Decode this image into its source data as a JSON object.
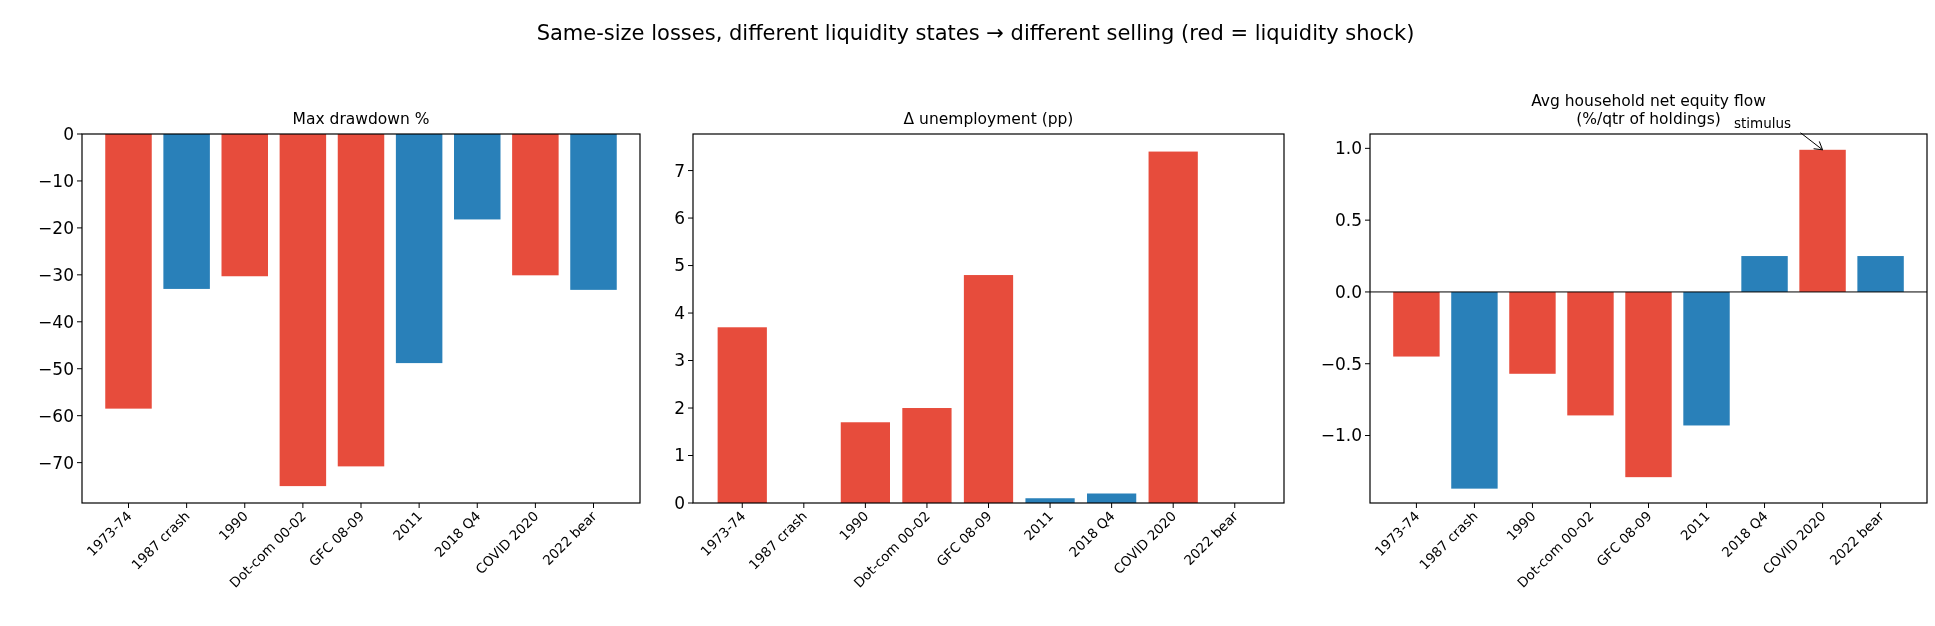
{
  "chart_data": [
    {
      "type": "bar",
      "title": "Max drawdown %",
      "annotations": [
        "Same-size losses, different liquidity states → different selling (red = liquidity shock)"
      ],
      "categories": [
        "1973-74",
        "1987 crash",
        "1990",
        "Dot-com 00-02",
        "GFC 08-09",
        "2011",
        "2018 Q4",
        "COVID 2020",
        "2022 bear"
      ],
      "values": [
        -58.5,
        -33,
        -30.3,
        -75,
        -70.8,
        -48.8,
        -18.2,
        -30.1,
        -33.2
      ],
      "colors": [
        "#e74c3c",
        "#2980b9",
        "#e74c3c",
        "#e74c3c",
        "#e74c3c",
        "#2980b9",
        "#2980b9",
        "#e74c3c",
        "#2980b9"
      ],
      "ylim": [
        -78.6,
        0
      ],
      "yticks": [
        {
          "value": -70,
          "label": "−70"
        },
        {
          "value": -60,
          "label": "−60"
        },
        {
          "value": -50,
          "label": "−50"
        },
        {
          "value": -40,
          "label": "−40"
        },
        {
          "value": -30,
          "label": "−30"
        },
        {
          "value": -20,
          "label": "−20"
        },
        {
          "value": -10,
          "label": "−10"
        },
        0
      ]
    },
    {
      "type": "bar",
      "title": "Δ unemployment (pp)",
      "categories": [
        "1973-74",
        "1987 crash",
        "1990",
        "Dot-com 00-02",
        "GFC 08-09",
        "2011",
        "2018 Q4",
        "COVID 2020",
        "2022 bear"
      ],
      "values": [
        3.7,
        0,
        1.7,
        2.0,
        4.8,
        0.1,
        0.2,
        7.4,
        0
      ],
      "colors": [
        "#e74c3c",
        "#2980b9",
        "#e74c3c",
        "#e74c3c",
        "#e74c3c",
        "#2980b9",
        "#2980b9",
        "#e74c3c",
        "#2980b9"
      ],
      "ylim": [
        0,
        7.77
      ],
      "yticks": [
        0,
        1,
        2,
        3,
        4,
        5,
        6,
        7
      ]
    },
    {
      "type": "bar",
      "title": "Avg household net equity flow\n(%/qtr of holdings)",
      "categories": [
        "1973-74",
        "1987 crash",
        "1990",
        "Dot-com 00-02",
        "GFC 08-09",
        "2011",
        "2018 Q4",
        "COVID 2020",
        "2022 bear"
      ],
      "values": [
        -0.45,
        -1.37,
        -0.57,
        -0.86,
        -1.29,
        -0.93,
        0.25,
        0.99,
        0.25
      ],
      "colors": [
        "#e74c3c",
        "#2980b9",
        "#e74c3c",
        "#e74c3c",
        "#e74c3c",
        "#2980b9",
        "#2980b9",
        "#e74c3c",
        "#2980b9"
      ],
      "ylim": [
        -1.47,
        1.1
      ],
      "yticks": [
        {
          "value": -1,
          "label": "−1.0"
        },
        {
          "value": -0.5,
          "label": "−0.5"
        },
        {
          "value": 0,
          "label": "0.0"
        },
        0.5,
        {
          "value": 1,
          "label": "1.0"
        }
      ],
      "ref_lines": [
        {
          "axis": "y",
          "value": 0,
          "color": "#000000"
        }
      ],
      "annotations": [
        {
          "text": "stimulus",
          "x": "COVID 2020",
          "y": 0.99
        }
      ]
    }
  ]
}
